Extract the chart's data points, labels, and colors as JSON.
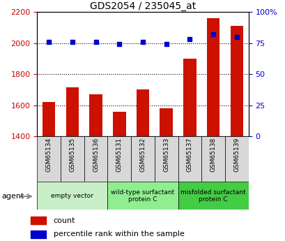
{
  "title": "GDS2054 / 235045_at",
  "samples": [
    "GSM65134",
    "GSM65135",
    "GSM65136",
    "GSM65131",
    "GSM65132",
    "GSM65133",
    "GSM65137",
    "GSM65138",
    "GSM65139"
  ],
  "counts": [
    1620,
    1715,
    1670,
    1558,
    1700,
    1580,
    1900,
    2160,
    2110
  ],
  "percentiles": [
    76,
    76,
    76,
    74,
    76,
    74,
    78,
    82,
    80
  ],
  "ylim_left": [
    1400,
    2200
  ],
  "ylim_right": [
    0,
    100
  ],
  "yticks_left": [
    1400,
    1600,
    1800,
    2000,
    2200
  ],
  "yticks_right": [
    0,
    25,
    50,
    75,
    100
  ],
  "ytick_labels_right": [
    "0",
    "25",
    "50",
    "75",
    "100%"
  ],
  "groups": [
    {
      "label": "empty vector",
      "indices": [
        0,
        1,
        2
      ],
      "color": "#c8efc8"
    },
    {
      "label": "wild-type surfactant\nprotein C",
      "indices": [
        3,
        4,
        5
      ],
      "color": "#90ee90"
    },
    {
      "label": "misfolded surfactant\nprotein C",
      "indices": [
        6,
        7,
        8
      ],
      "color": "#44cc44"
    }
  ],
  "bar_color": "#cc1100",
  "dot_color": "#0000cc",
  "bar_width": 0.55,
  "grid_color": "#000000",
  "bg_color": "#ffffff",
  "tick_label_color_left": "#cc0000",
  "tick_label_color_right": "#0000cc",
  "agent_label": "agent",
  "legend_count": "count",
  "legend_percentile": "percentile rank within the sample"
}
